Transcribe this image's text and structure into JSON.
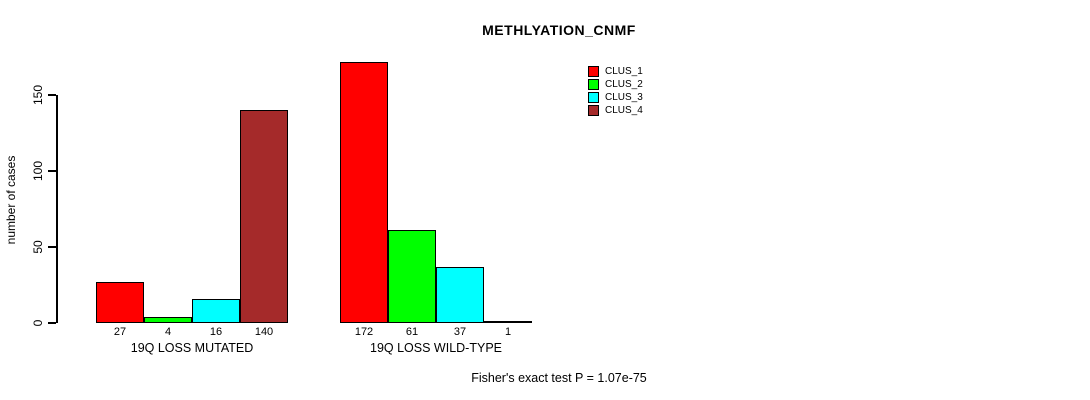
{
  "chart_data": {
    "type": "bar",
    "title": "METHLYATION_CNMF",
    "xlabel": "",
    "ylabel": "number of cases",
    "ylim": [
      0,
      175
    ],
    "yticks": [
      0,
      50,
      100,
      150
    ],
    "grid": false,
    "legend_position": "top-right",
    "categories": [
      "19Q LOSS MUTATED",
      "19Q LOSS WILD-TYPE"
    ],
    "series": [
      {
        "name": "CLUS_1",
        "color": "#FF0000",
        "values": [
          27,
          172
        ]
      },
      {
        "name": "CLUS_2",
        "color": "#00FF00",
        "values": [
          4,
          61
        ]
      },
      {
        "name": "CLUS_3",
        "color": "#00FFFF",
        "values": [
          16,
          37
        ]
      },
      {
        "name": "CLUS_4",
        "color": "#A52A2A",
        "values": [
          140,
          1
        ]
      }
    ],
    "bar_value_labels": [
      [
        27,
        4,
        16,
        140
      ],
      [
        172,
        61,
        37,
        1
      ]
    ],
    "annotation": "Fisher's exact test P = 1.07e-75",
    "colors": {
      "background": "#FFFFFF",
      "axis": "#000000",
      "text": "#000000"
    }
  }
}
